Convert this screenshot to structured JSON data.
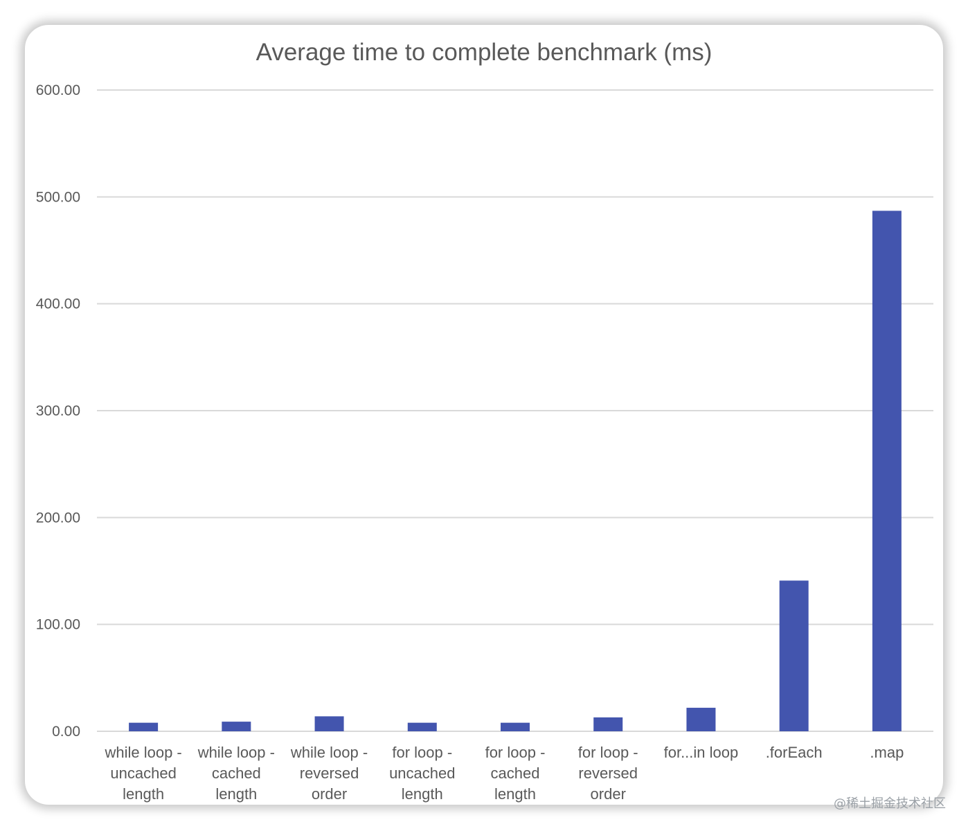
{
  "chart_data": {
    "type": "bar",
    "title": "Average time to complete benchmark (ms)",
    "xlabel": "",
    "ylabel": "",
    "ylim": [
      0,
      600
    ],
    "yticks": [
      "0.00",
      "100.00",
      "200.00",
      "300.00",
      "400.00",
      "500.00",
      "600.00"
    ],
    "grid": true,
    "legend": "none",
    "categories": [
      "while loop - uncached length",
      "while loop - cached length",
      "while loop - reversed order",
      "for loop - uncached length",
      "for loop - cached length",
      "for loop - reversed order",
      "for...in loop",
      ".forEach",
      ".map"
    ],
    "category_lines": [
      [
        "while loop -",
        "uncached",
        "length"
      ],
      [
        "while loop -",
        "cached",
        "length"
      ],
      [
        "while loop -",
        "reversed",
        "order"
      ],
      [
        "for loop -",
        "uncached",
        "length"
      ],
      [
        "for loop -",
        "cached",
        "length"
      ],
      [
        "for loop -",
        "reversed",
        "order"
      ],
      [
        "for...in loop"
      ],
      [
        ".forEach"
      ],
      [
        ".map"
      ]
    ],
    "values": [
      8,
      9,
      14,
      8,
      8,
      13,
      22,
      141,
      487
    ],
    "bar_color": "#4355ae",
    "grid_color": "#d9d9d9"
  },
  "watermark": "@稀土掘金技术社区"
}
